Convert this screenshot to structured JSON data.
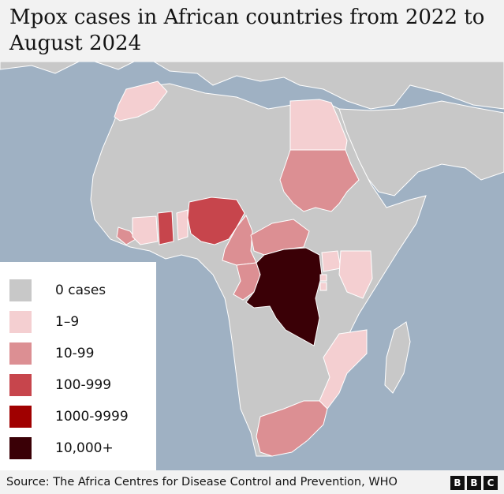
{
  "title": "Mpox cases in African countries from 2022 to August 2024",
  "legend": {
    "items": [
      {
        "label": "0 cases",
        "color": "#c8c8c8"
      },
      {
        "label": "1–9",
        "color": "#f4cfd1"
      },
      {
        "label": "10-99",
        "color": "#dc8f93"
      },
      {
        "label": "100-999",
        "color": "#c7454c"
      },
      {
        "label": "1000-9999",
        "color": "#a00000"
      },
      {
        "label": "10,000+",
        "color": "#3a0006"
      }
    ]
  },
  "map": {
    "sea_color": "#9fb1c3",
    "countries": [
      {
        "name": "Morocco",
        "category": "1–9"
      },
      {
        "name": "Egypt",
        "category": "1–9"
      },
      {
        "name": "Sudan",
        "category": "10-99"
      },
      {
        "name": "Liberia",
        "category": "10-99"
      },
      {
        "name": "Côte d'Ivoire",
        "category": "1–9"
      },
      {
        "name": "Ghana",
        "category": "100-999"
      },
      {
        "name": "Benin",
        "category": "1–9"
      },
      {
        "name": "Nigeria",
        "category": "100-999"
      },
      {
        "name": "Cameroon",
        "category": "10-99"
      },
      {
        "name": "Central African Republic",
        "category": "10-99"
      },
      {
        "name": "Republic of the Congo",
        "category": "10-99"
      },
      {
        "name": "Democratic Republic of the Congo",
        "category": "10,000+"
      },
      {
        "name": "Uganda",
        "category": "1–9"
      },
      {
        "name": "Rwanda",
        "category": "1–9"
      },
      {
        "name": "Burundi",
        "category": "1–9"
      },
      {
        "name": "Kenya",
        "category": "1–9"
      },
      {
        "name": "Mozambique",
        "category": "1–9"
      },
      {
        "name": "South Africa",
        "category": "10-99"
      }
    ]
  },
  "footer": {
    "source": "Source: The Africa Centres for Disease Control and Prevention, WHO",
    "logo": [
      "B",
      "B",
      "C"
    ]
  }
}
